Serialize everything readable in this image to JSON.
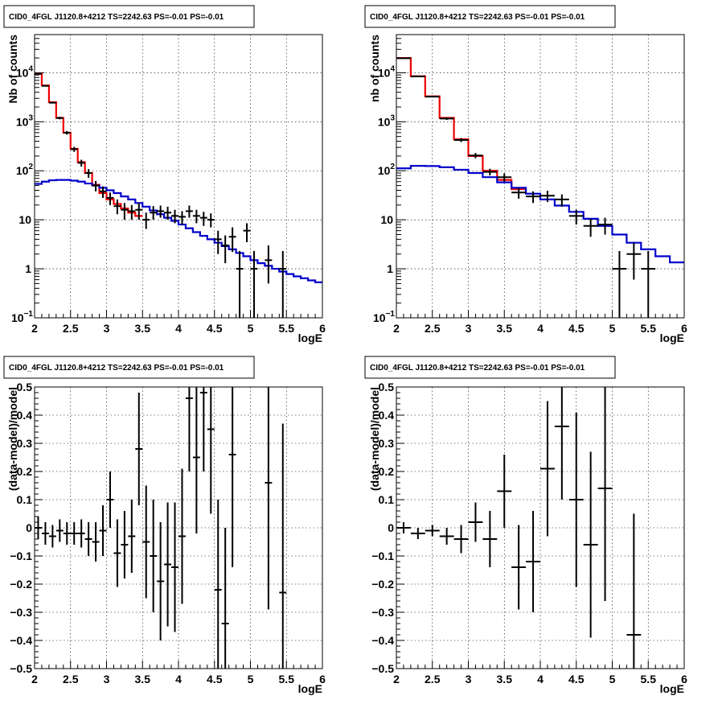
{
  "title": "CID0_4FGL J1120.8+4212 TS=2242.63 PS=-0.01 PS=-0.01",
  "colors": {
    "data": "#000000",
    "total_model": "#ee0000",
    "bkg_model": "#0000cc"
  },
  "chart_data": [
    {
      "type": "line",
      "title": "CID0_4FGL J1120.8+4212 TS=2242.63 PS=-0.01 PS=-0.01",
      "xlabel": "logE",
      "ylabel": "Nb of counts",
      "xlim": [
        2,
        6
      ],
      "ylim": [
        0.1,
        60000
      ],
      "yscale": "log",
      "grid": true,
      "xticks": [
        "2",
        "2.5",
        "3",
        "3.5",
        "4",
        "4.5",
        "5",
        "5.5",
        "6"
      ],
      "yticks": [
        {
          "v": 0.1,
          "label": "10",
          "sup": "−1"
        },
        {
          "v": 1,
          "label": "1",
          "sup": ""
        },
        {
          "v": 10,
          "label": "10",
          "sup": ""
        },
        {
          "v": 100,
          "label": "10",
          "sup": "2"
        },
        {
          "v": 1000,
          "label": "10",
          "sup": "3"
        },
        {
          "v": 10000,
          "label": "10",
          "sup": "4"
        }
      ],
      "edges": [
        2.0,
        2.1,
        2.2,
        2.3,
        2.4,
        2.5,
        2.6,
        2.7,
        2.8,
        2.9,
        3.0,
        3.1,
        3.2,
        3.3,
        3.4,
        3.5,
        3.6,
        3.7,
        3.8,
        3.9,
        4.0,
        4.1,
        4.2,
        4.3,
        4.4,
        4.5,
        4.6,
        4.7,
        4.8,
        4.9,
        5.0,
        5.1,
        5.2,
        5.3,
        5.4,
        5.5,
        5.6,
        5.7,
        5.8,
        5.9,
        6.0
      ],
      "series": [
        {
          "name": "total model",
          "style": "step",
          "color": "#ee0000",
          "range": [
            2.0,
            3.5
          ],
          "values": [
            9500,
            5500,
            2500,
            1200,
            600,
            280,
            150,
            90,
            52,
            35,
            26,
            21,
            17,
            14,
            12
          ]
        },
        {
          "name": "background model",
          "style": "step",
          "color": "#0000cc",
          "values": [
            54,
            60,
            64,
            65,
            65,
            63,
            60,
            55,
            50,
            45,
            40,
            35,
            30,
            26,
            22,
            18.5,
            15.5,
            13,
            11,
            9.5,
            8,
            6.7,
            5.6,
            4.7,
            4,
            3.4,
            2.9,
            2.5,
            2.1,
            1.8,
            1.5,
            1.3,
            1.15,
            1.0,
            0.88,
            0.78,
            0.7,
            0.64,
            0.58,
            0.53
          ]
        },
        {
          "name": "data",
          "style": "errorbar",
          "color": "#000000",
          "points": [
            {
              "x": 2.05,
              "y": 9500,
              "lo": 9300,
              "hi": 9700
            },
            {
              "x": 2.15,
              "y": 5400,
              "lo": 5250,
              "hi": 5550
            },
            {
              "x": 2.25,
              "y": 2450,
              "lo": 2350,
              "hi": 2550
            },
            {
              "x": 2.35,
              "y": 1190,
              "lo": 1120,
              "hi": 1260
            },
            {
              "x": 2.45,
              "y": 595,
              "lo": 545,
              "hi": 645
            },
            {
              "x": 2.55,
              "y": 275,
              "lo": 243,
              "hi": 307
            },
            {
              "x": 2.65,
              "y": 145,
              "lo": 122,
              "hi": 168
            },
            {
              "x": 2.75,
              "y": 90,
              "lo": 72,
              "hi": 108
            },
            {
              "x": 2.85,
              "y": 50,
              "lo": 38,
              "hi": 62
            },
            {
              "x": 2.95,
              "y": 38,
              "lo": 28,
              "hi": 48
            },
            {
              "x": 3.05,
              "y": 28,
              "lo": 20,
              "hi": 36
            },
            {
              "x": 3.15,
              "y": 19,
              "lo": 13,
              "hi": 26
            },
            {
              "x": 3.25,
              "y": 16,
              "lo": 10,
              "hi": 22
            },
            {
              "x": 3.35,
              "y": 15,
              "lo": 10,
              "hi": 20
            },
            {
              "x": 3.45,
              "y": 16,
              "lo": 10,
              "hi": 22
            },
            {
              "x": 3.55,
              "y": 10,
              "lo": 6.5,
              "hi": 14
            },
            {
              "x": 3.65,
              "y": 14,
              "lo": 10,
              "hi": 19
            },
            {
              "x": 3.75,
              "y": 15,
              "lo": 11,
              "hi": 19.5
            },
            {
              "x": 3.85,
              "y": 14,
              "lo": 10,
              "hi": 18.5
            },
            {
              "x": 3.95,
              "y": 12,
              "lo": 8.5,
              "hi": 16
            },
            {
              "x": 4.05,
              "y": 11.5,
              "lo": 8,
              "hi": 15
            },
            {
              "x": 4.15,
              "y": 15,
              "lo": 11,
              "hi": 19.5
            },
            {
              "x": 4.25,
              "y": 12,
              "lo": 8.5,
              "hi": 16
            },
            {
              "x": 4.35,
              "y": 11,
              "lo": 7.5,
              "hi": 14.5
            },
            {
              "x": 4.45,
              "y": 10,
              "lo": 7,
              "hi": 13.5
            },
            {
              "x": 4.55,
              "y": 4,
              "lo": 2,
              "hi": 6
            },
            {
              "x": 4.65,
              "y": 3,
              "lo": 1.3,
              "hi": 4.8
            },
            {
              "x": 4.75,
              "y": 4.5,
              "lo": 2.2,
              "hi": 7
            },
            {
              "x": 4.85,
              "y": 1,
              "lo": 0.1,
              "hi": 2.3
            },
            {
              "x": 4.95,
              "y": 6,
              "lo": 3.5,
              "hi": 8.5
            },
            {
              "x": 5.05,
              "y": 1,
              "lo": 0.1,
              "hi": 2.3
            },
            {
              "x": 5.25,
              "y": 1.5,
              "lo": 0.5,
              "hi": 3
            },
            {
              "x": 5.45,
              "y": 1,
              "lo": 0.1,
              "hi": 2.3
            }
          ]
        }
      ]
    },
    {
      "type": "line",
      "title": "CID0_4FGL J1120.8+4212 TS=2242.63 PS=-0.01 PS=-0.01",
      "xlabel": "logE",
      "ylabel": "nb of counts",
      "xlim": [
        2,
        6
      ],
      "ylim": [
        0.1,
        60000
      ],
      "yscale": "log",
      "grid": true,
      "xticks": [
        "2",
        "2.5",
        "3",
        "3.5",
        "4",
        "4.5",
        "5",
        "5.5",
        "6"
      ],
      "yticks": [
        {
          "v": 0.1,
          "label": "10",
          "sup": "−1"
        },
        {
          "v": 1,
          "label": "1",
          "sup": ""
        },
        {
          "v": 10,
          "label": "10",
          "sup": ""
        },
        {
          "v": 100,
          "label": "10",
          "sup": "2"
        },
        {
          "v": 1000,
          "label": "10",
          "sup": "3"
        },
        {
          "v": 10000,
          "label": "10",
          "sup": "4"
        }
      ],
      "edges": [
        2.0,
        2.2,
        2.4,
        2.6,
        2.8,
        3.0,
        3.2,
        3.4,
        3.6,
        3.8,
        4.0,
        4.2,
        4.4,
        4.6,
        4.8,
        5.0,
        5.2,
        5.4,
        5.6,
        5.8,
        6.0
      ],
      "series": [
        {
          "name": "total model",
          "style": "step",
          "color": "#ee0000",
          "range": [
            2.0,
            3.8
          ],
          "values": [
            20000,
            8500,
            3300,
            1200,
            440,
            200,
            100,
            65,
            42
          ]
        },
        {
          "name": "background model",
          "style": "step",
          "color": "#0000cc",
          "values": [
            112,
            126,
            125,
            118,
            105,
            90,
            74,
            58,
            45,
            34,
            26,
            19.5,
            14.5,
            10.5,
            7.5,
            5,
            3.4,
            2.5,
            1.8,
            1.35
          ]
        },
        {
          "name": "data",
          "style": "errorbar",
          "color": "#000000",
          "points": [
            {
              "x": 2.1,
              "y": 19800,
              "lo": 19500,
              "hi": 20100
            },
            {
              "x": 2.3,
              "y": 8400,
              "lo": 8200,
              "hi": 8600
            },
            {
              "x": 2.5,
              "y": 3250,
              "lo": 3140,
              "hi": 3360
            },
            {
              "x": 2.7,
              "y": 1160,
              "lo": 1090,
              "hi": 1230
            },
            {
              "x": 2.9,
              "y": 425,
              "lo": 385,
              "hi": 465
            },
            {
              "x": 3.1,
              "y": 205,
              "lo": 180,
              "hi": 230
            },
            {
              "x": 3.3,
              "y": 95,
              "lo": 80,
              "hi": 110
            },
            {
              "x": 3.5,
              "y": 74,
              "lo": 60,
              "hi": 88
            },
            {
              "x": 3.7,
              "y": 36,
              "lo": 27,
              "hi": 45
            },
            {
              "x": 3.9,
              "y": 30,
              "lo": 22,
              "hi": 38
            },
            {
              "x": 4.1,
              "y": 31,
              "lo": 23,
              "hi": 39
            },
            {
              "x": 4.3,
              "y": 26,
              "lo": 18.5,
              "hi": 33
            },
            {
              "x": 4.5,
              "y": 12,
              "lo": 8,
              "hi": 16
            },
            {
              "x": 4.7,
              "y": 7.5,
              "lo": 4.5,
              "hi": 10.5
            },
            {
              "x": 4.9,
              "y": 8,
              "lo": 5,
              "hi": 11
            },
            {
              "x": 5.1,
              "y": 1,
              "lo": 0.1,
              "hi": 2.3
            },
            {
              "x": 5.3,
              "y": 2,
              "lo": 0.6,
              "hi": 3.4
            },
            {
              "x": 5.5,
              "y": 1,
              "lo": 0.1,
              "hi": 2.3
            }
          ]
        }
      ]
    },
    {
      "type": "scatter",
      "title": "CID0_4FGL J1120.8+4212 TS=2242.63 PS=-0.01 PS=-0.01",
      "xlabel": "logE",
      "ylabel": "(data-model)/model",
      "xlim": [
        2,
        6
      ],
      "ylim": [
        -0.5,
        0.5
      ],
      "yscale": "linear",
      "grid": true,
      "xticks": [
        "2",
        "2.5",
        "3",
        "3.5",
        "4",
        "4.5",
        "5",
        "5.5",
        "6"
      ],
      "yticks": [
        "−0.5",
        "−0.4",
        "−0.3",
        "−0.2",
        "−0.1",
        "0",
        "0.1",
        "0.2",
        "0.3",
        "0.4",
        "0.5"
      ],
      "binwidth": 0.1,
      "series": [
        {
          "name": "residuals",
          "style": "errorbar",
          "color": "#000000",
          "points": [
            {
              "x": 2.05,
              "y": 0.0,
              "e": 0.04
            },
            {
              "x": 2.15,
              "y": -0.02,
              "e": 0.04
            },
            {
              "x": 2.25,
              "y": -0.03,
              "e": 0.04
            },
            {
              "x": 2.35,
              "y": -0.01,
              "e": 0.04
            },
            {
              "x": 2.45,
              "y": -0.02,
              "e": 0.04
            },
            {
              "x": 2.55,
              "y": -0.02,
              "e": 0.04
            },
            {
              "x": 2.65,
              "y": -0.02,
              "e": 0.05
            },
            {
              "x": 2.75,
              "y": -0.04,
              "e": 0.06
            },
            {
              "x": 2.85,
              "y": -0.05,
              "e": 0.07
            },
            {
              "x": 2.95,
              "y": -0.01,
              "e": 0.09
            },
            {
              "x": 3.05,
              "y": 0.1,
              "e": 0.1
            },
            {
              "x": 3.15,
              "y": -0.09,
              "e": 0.12
            },
            {
              "x": 3.25,
              "y": -0.06,
              "e": 0.12
            },
            {
              "x": 3.35,
              "y": -0.03,
              "e": 0.13
            },
            {
              "x": 3.45,
              "y": 0.28,
              "e": 0.2
            },
            {
              "x": 3.55,
              "y": -0.05,
              "e": 0.2
            },
            {
              "x": 3.65,
              "y": -0.1,
              "e": 0.2
            },
            {
              "x": 3.75,
              "y": -0.19,
              "e": 0.21
            },
            {
              "x": 3.85,
              "y": -0.13,
              "e": 0.22
            },
            {
              "x": 3.95,
              "y": -0.14,
              "e": 0.23
            },
            {
              "x": 4.05,
              "y": -0.03,
              "e": 0.24
            },
            {
              "x": 4.15,
              "y": 0.46,
              "e": 0.26
            },
            {
              "x": 4.25,
              "y": 0.25,
              "e": 0.27
            },
            {
              "x": 4.35,
              "y": 0.48,
              "e": 0.28
            },
            {
              "x": 4.45,
              "y": 0.35,
              "e": 0.3
            },
            {
              "x": 4.55,
              "y": -0.22,
              "e": 0.32
            },
            {
              "x": 4.65,
              "y": -0.34,
              "e": 0.34
            },
            {
              "x": 4.75,
              "y": 0.26,
              "e": 0.4
            },
            {
              "x": 5.25,
              "y": 0.16,
              "e": 0.45
            },
            {
              "x": 5.45,
              "y": -0.23,
              "e": 0.6
            }
          ]
        }
      ]
    },
    {
      "type": "scatter",
      "title": "CID0_4FGL J1120.8+4212 TS=2242.63 PS=-0.01 PS=-0.01",
      "xlabel": "logE",
      "ylabel": "(data-model)/model",
      "xlim": [
        2,
        6
      ],
      "ylim": [
        -0.5,
        0.5
      ],
      "yscale": "linear",
      "grid": true,
      "xticks": [
        "2",
        "2.5",
        "3",
        "3.5",
        "4",
        "4.5",
        "5",
        "5.5",
        "6"
      ],
      "yticks": [
        "−0.5",
        "−0.4",
        "−0.3",
        "−0.2",
        "−0.1",
        "0",
        "0.1",
        "0.2",
        "0.3",
        "0.4",
        "0.5"
      ],
      "binwidth": 0.2,
      "series": [
        {
          "name": "residuals",
          "style": "errorbar",
          "color": "#000000",
          "points": [
            {
              "x": 2.1,
              "y": 0.0,
              "e": 0.02
            },
            {
              "x": 2.3,
              "y": -0.02,
              "e": 0.02
            },
            {
              "x": 2.5,
              "y": -0.01,
              "e": 0.02
            },
            {
              "x": 2.7,
              "y": -0.03,
              "e": 0.03
            },
            {
              "x": 2.9,
              "y": -0.04,
              "e": 0.05
            },
            {
              "x": 3.1,
              "y": 0.02,
              "e": 0.07
            },
            {
              "x": 3.3,
              "y": -0.04,
              "e": 0.1
            },
            {
              "x": 3.5,
              "y": 0.13,
              "e": 0.13
            },
            {
              "x": 3.7,
              "y": -0.14,
              "e": 0.15
            },
            {
              "x": 3.9,
              "y": -0.12,
              "e": 0.18
            },
            {
              "x": 4.1,
              "y": 0.21,
              "e": 0.24
            },
            {
              "x": 4.3,
              "y": 0.36,
              "e": 0.26
            },
            {
              "x": 4.5,
              "y": 0.1,
              "e": 0.31
            },
            {
              "x": 4.7,
              "y": -0.06,
              "e": 0.33
            },
            {
              "x": 4.9,
              "y": 0.14,
              "e": 0.4
            },
            {
              "x": 5.3,
              "y": -0.38,
              "e": 0.43
            }
          ]
        }
      ]
    }
  ]
}
